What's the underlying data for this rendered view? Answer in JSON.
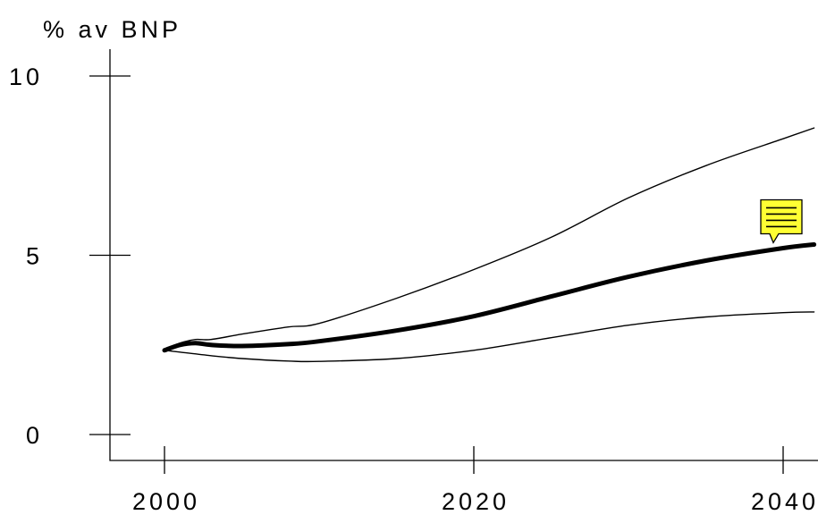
{
  "chart_data": {
    "type": "line",
    "ylabel": "% av BNP",
    "xlabel": "",
    "xlim": [
      1996.5,
      2042
    ],
    "ylim": [
      -0.2,
      11.8
    ],
    "yticks": [
      0,
      5,
      10
    ],
    "xticks": [
      2000,
      2020,
      2040
    ],
    "ytick_labels": [
      "0",
      "5",
      "10"
    ],
    "xtick_labels": [
      "2000",
      "2020",
      "2040"
    ],
    "grid": false,
    "legend": "none",
    "series": [
      {
        "x": [
          2000,
          2001,
          2002,
          2003,
          2005,
          2008,
          2010,
          2015,
          2020,
          2025,
          2030,
          2035,
          2040,
          2042
        ],
        "values": [
          2.35,
          2.5,
          2.55,
          2.5,
          2.47,
          2.52,
          2.6,
          2.9,
          3.3,
          3.85,
          4.4,
          4.85,
          5.2,
          5.3
        ],
        "color": "#000000",
        "style": "thick"
      },
      {
        "x": [
          2000,
          2001,
          2002,
          2003,
          2005,
          2008,
          2010,
          2015,
          2020,
          2025,
          2030,
          2035,
          2040,
          2042
        ],
        "values": [
          2.35,
          2.55,
          2.65,
          2.65,
          2.8,
          3.0,
          3.1,
          3.8,
          4.6,
          5.5,
          6.6,
          7.5,
          8.25,
          8.55
        ],
        "color": "#000000",
        "style": "thin"
      },
      {
        "x": [
          2000,
          2001,
          2003,
          2005,
          2008,
          2010,
          2015,
          2020,
          2025,
          2030,
          2035,
          2040,
          2042
        ],
        "values": [
          2.35,
          2.3,
          2.2,
          2.12,
          2.05,
          2.04,
          2.12,
          2.35,
          2.7,
          3.05,
          3.28,
          3.4,
          3.42
        ],
        "color": "#000000",
        "style": "thin"
      }
    ],
    "annotation": {
      "type": "note-icon",
      "x": 2040,
      "y": 5.3,
      "color": "#ffff33"
    }
  }
}
